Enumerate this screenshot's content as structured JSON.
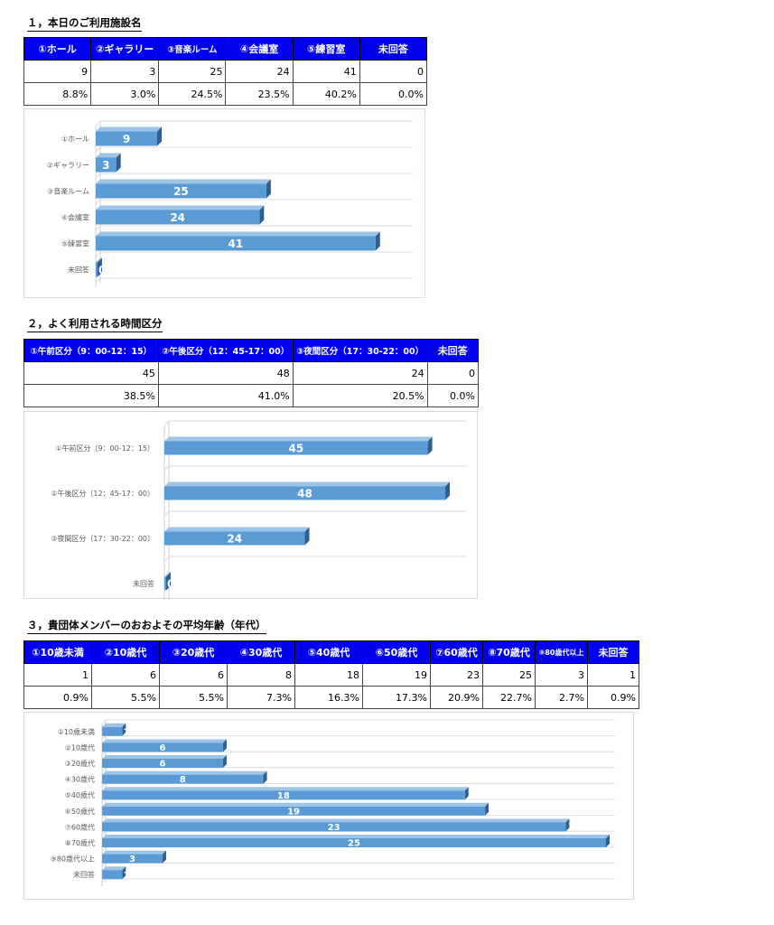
{
  "sections": [
    {
      "title": "１，本日のご利用施設名",
      "headers": [
        "①ホール",
        "②ギャラリー",
        "③音楽ルーム",
        "④会議室",
        "⑤練習室",
        "未回答"
      ],
      "counts": [
        "9",
        "3",
        "25",
        "24",
        "41",
        "0"
      ],
      "percents": [
        "8.8%",
        "3.0%",
        "24.5%",
        "23.5%",
        "40.2%",
        "0.0%"
      ]
    },
    {
      "title": "２，よく利用される時間区分",
      "headers": [
        "①午前区分（9：00-12：15）",
        "②午後区分（12：45-17：00）",
        "③夜間区分（17：30-22：00）",
        "未回答"
      ],
      "counts": [
        "45",
        "48",
        "24",
        "0"
      ],
      "percents": [
        "38.5%",
        "41.0%",
        "20.5%",
        "0.0%"
      ]
    },
    {
      "title": "３，貴団体メンバーのおおよその平均年齢（年代）",
      "headers": [
        "①10歳未満",
        "②10歳代",
        "③20歳代",
        "④30歳代",
        "⑤40歳代",
        "⑥50歳代",
        "⑦60歳代",
        "⑧70歳代",
        "⑨80歳代以上",
        "未回答"
      ],
      "counts": [
        "1",
        "6",
        "6",
        "8",
        "18",
        "19",
        "23",
        "25",
        "3",
        "1"
      ],
      "percents": [
        "0.9%",
        "5.5%",
        "5.5%",
        "7.3%",
        "16.3%",
        "17.3%",
        "20.9%",
        "22.7%",
        "2.7%",
        "0.9%"
      ]
    }
  ],
  "chart_data": [
    {
      "type": "bar",
      "orientation": "horizontal",
      "categories": [
        "①ホール",
        "②ギャラリー",
        "③音楽ルーム",
        "④会議室",
        "⑤練習室",
        "未回答"
      ],
      "values": [
        9,
        3,
        25,
        24,
        41,
        0
      ],
      "xlim": [
        0,
        45
      ],
      "data_labels": true,
      "grid": true,
      "bar_color": "#5b9bd5"
    },
    {
      "type": "bar",
      "orientation": "horizontal",
      "categories": [
        "①午前区分（9：00-12：15）",
        "②午後区分（12：45-17：00）",
        "③夜間区分（17：30-22：00）",
        "未回答"
      ],
      "values": [
        45,
        48,
        24,
        0
      ],
      "xlim": [
        0,
        50
      ],
      "data_labels": true,
      "grid": true,
      "bar_color": "#5b9bd5"
    },
    {
      "type": "bar",
      "orientation": "horizontal",
      "categories": [
        "①10歳未満",
        "②10歳代",
        "③20歳代",
        "④30歳代",
        "⑤40歳代",
        "⑥50歳代",
        "⑦60歳代",
        "⑧70歳代",
        "⑨80歳代以上",
        "未回答"
      ],
      "values": [
        1,
        6,
        6,
        8,
        18,
        19,
        23,
        25,
        3,
        1
      ],
      "xlim": [
        0,
        25
      ],
      "data_labels": true,
      "grid": true,
      "bar_color": "#5b9bd5"
    }
  ]
}
